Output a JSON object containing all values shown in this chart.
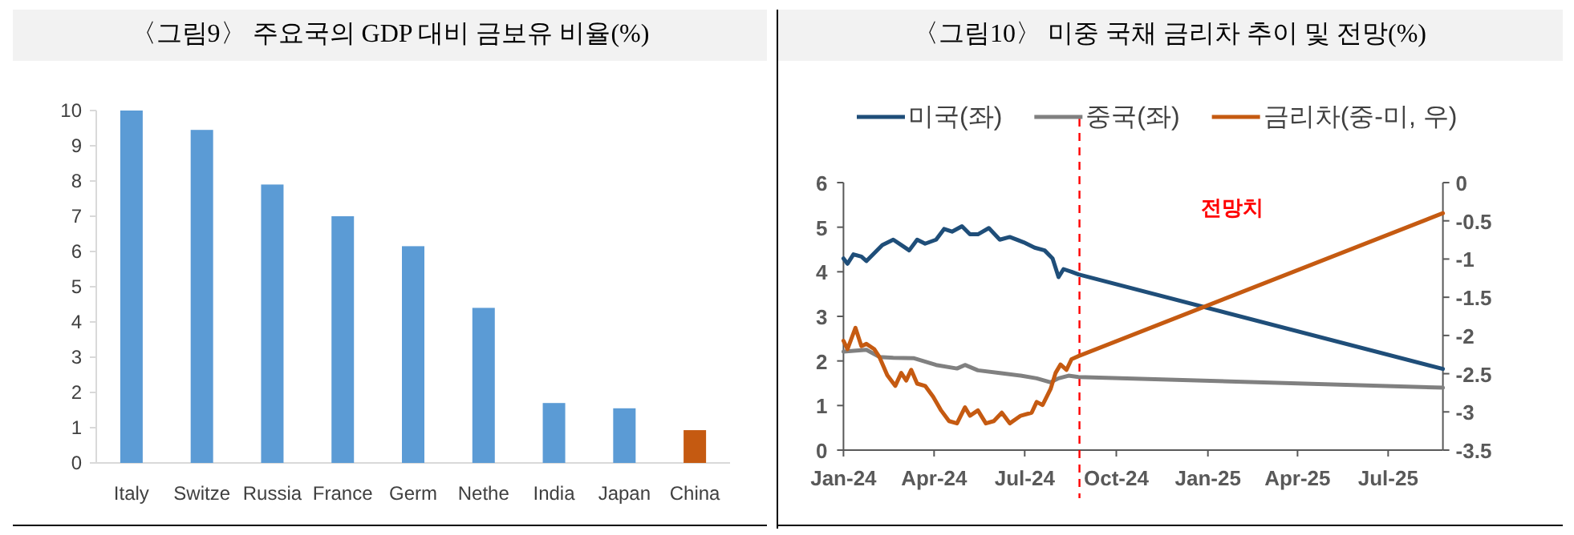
{
  "chart_data": [
    {
      "type": "bar",
      "title": "〈그림9〉 주요국의 GDP 대비 금보유 비율(%)",
      "categories": [
        "Italy",
        "Switze",
        "Russia",
        "France",
        "Germ",
        "Nethe",
        "India",
        "Japan",
        "China"
      ],
      "values": [
        10,
        9.45,
        7.9,
        7.0,
        6.15,
        4.4,
        1.7,
        1.55,
        0.93
      ],
      "colors": [
        "#5b9bd5",
        "#5b9bd5",
        "#5b9bd5",
        "#5b9bd5",
        "#5b9bd5",
        "#5b9bd5",
        "#5b9bd5",
        "#5b9bd5",
        "#c55a11"
      ],
      "ylim": [
        0,
        10
      ],
      "yticks": [
        0,
        1,
        2,
        3,
        4,
        5,
        6,
        7,
        8,
        9,
        10
      ],
      "grid": false
    },
    {
      "type": "line",
      "title": "〈그림10〉 미중 국채 금리차 추이 및 전망(%)",
      "legend": "top",
      "grid": false,
      "xlim": [
        "2024-01-01",
        "2025-08-25"
      ],
      "xticks": [
        {
          "value": "2024-01-01",
          "label": "Jan-24"
        },
        {
          "value": "2024-04-01",
          "label": "Apr-24"
        },
        {
          "value": "2024-07-01",
          "label": "Jul-24"
        },
        {
          "value": "2024-10-01",
          "label": "Oct-24"
        },
        {
          "value": "2025-01-01",
          "label": "Jan-25"
        },
        {
          "value": "2025-04-01",
          "label": "Apr-25"
        },
        {
          "value": "2025-07-01",
          "label": "Jul-25"
        }
      ],
      "ylim": [
        0,
        6
      ],
      "yticks": [
        0,
        1,
        2,
        3,
        4,
        5,
        6
      ],
      "y2lim": [
        -3.5,
        0
      ],
      "y2ticks": [
        -3.5,
        -3,
        -2.5,
        -2,
        -1.5,
        -1,
        -0.5,
        0
      ],
      "ref_lines": [
        {
          "axis": "x",
          "value": "2024-08-25",
          "label": "전망치",
          "color": "#ff0000",
          "line_style": "dashed"
        }
      ],
      "series": [
        {
          "name": "미국(좌)",
          "color": "#1f4e79",
          "x": [
            "2024-01-01",
            "2024-01-05",
            "2024-01-11",
            "2024-01-19",
            "2024-01-24",
            "2024-02-01",
            "2024-02-09",
            "2024-02-20",
            "2024-02-28",
            "2024-03-07",
            "2024-03-15",
            "2024-03-23",
            "2024-04-03",
            "2024-04-11",
            "2024-04-19",
            "2024-04-29",
            "2024-05-07",
            "2024-05-15",
            "2024-05-26",
            "2024-06-06",
            "2024-06-16",
            "2024-06-30",
            "2024-07-11",
            "2024-07-21",
            "2024-07-29",
            "2024-08-04",
            "2024-08-09",
            "2024-08-17",
            "2024-08-24",
            "2025-08-25"
          ],
          "values": [
            4.3,
            4.18,
            4.39,
            4.34,
            4.24,
            4.42,
            4.6,
            4.72,
            4.6,
            4.48,
            4.72,
            4.63,
            4.72,
            4.96,
            4.9,
            5.02,
            4.84,
            4.84,
            4.98,
            4.72,
            4.78,
            4.66,
            4.54,
            4.48,
            4.3,
            3.88,
            4.06,
            4.0,
            3.94,
            1.82
          ]
        },
        {
          "name": "중국(좌)",
          "color": "#808080",
          "x": [
            "2024-01-01",
            "2024-01-24",
            "2024-02-06",
            "2024-02-20",
            "2024-03-12",
            "2024-04-03",
            "2024-04-24",
            "2024-05-02",
            "2024-05-15",
            "2024-06-06",
            "2024-06-27",
            "2024-07-13",
            "2024-07-27",
            "2024-08-04",
            "2024-08-14",
            "2024-08-24",
            "2025-08-25"
          ],
          "values": [
            2.21,
            2.25,
            2.09,
            2.07,
            2.06,
            1.91,
            1.83,
            1.91,
            1.79,
            1.73,
            1.67,
            1.61,
            1.52,
            1.61,
            1.67,
            1.64,
            1.4
          ]
        },
        {
          "name": "금리차(중-미, 우)",
          "color": "#c55a11",
          "axis": "y2",
          "x": [
            "2024-01-01",
            "2024-01-05",
            "2024-01-11",
            "2024-01-13",
            "2024-01-19",
            "2024-01-24",
            "2024-02-01",
            "2024-02-06",
            "2024-02-14",
            "2024-02-22",
            "2024-02-28",
            "2024-03-04",
            "2024-03-09",
            "2024-03-15",
            "2024-03-23",
            "2024-03-31",
            "2024-04-08",
            "2024-04-16",
            "2024-04-24",
            "2024-05-02",
            "2024-05-07",
            "2024-05-15",
            "2024-05-23",
            "2024-05-31",
            "2024-06-08",
            "2024-06-16",
            "2024-06-27",
            "2024-07-08",
            "2024-07-13",
            "2024-07-19",
            "2024-07-27",
            "2024-08-01",
            "2024-08-06",
            "2024-08-12",
            "2024-08-17",
            "2024-08-24",
            "2025-08-25"
          ],
          "values": [
            -2.07,
            -2.18,
            -1.97,
            -1.9,
            -2.14,
            -2.11,
            -2.18,
            -2.28,
            -2.52,
            -2.66,
            -2.49,
            -2.59,
            -2.45,
            -2.63,
            -2.66,
            -2.8,
            -2.98,
            -3.12,
            -3.15,
            -2.94,
            -3.05,
            -2.98,
            -3.15,
            -3.12,
            -3.01,
            -3.15,
            -3.05,
            -3.01,
            -2.87,
            -2.91,
            -2.7,
            -2.49,
            -2.38,
            -2.45,
            -2.31,
            -2.27,
            -0.4
          ]
        }
      ]
    }
  ]
}
